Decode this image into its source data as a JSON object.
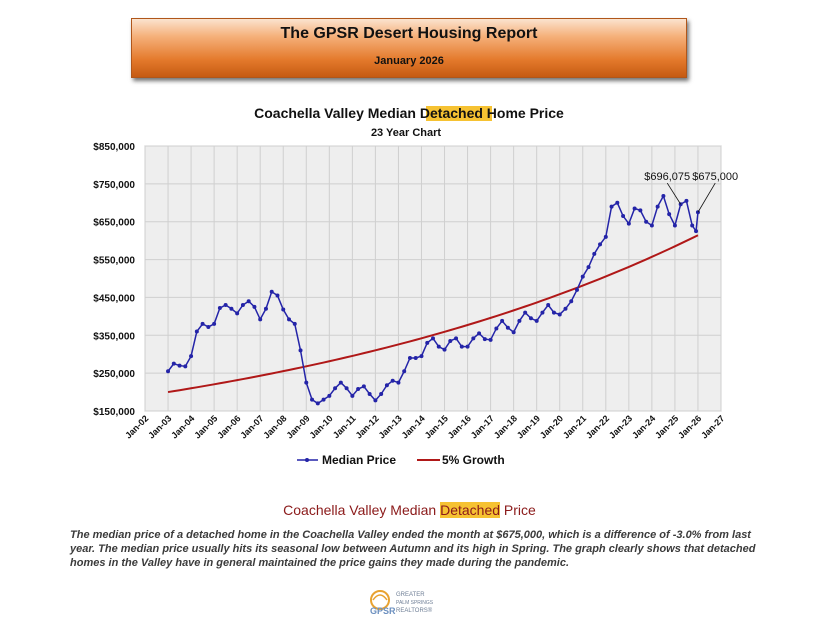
{
  "header": {
    "title": "The GPSR Desert Housing Report",
    "date": "January 2026"
  },
  "chart_data": {
    "type": "line",
    "title_parts": [
      "Coachella Valley Median ",
      "Detached",
      " Home Price"
    ],
    "subtitle": "23 Year Chart",
    "highlight_color": "#f6c232",
    "y_ticks": [
      "$850,000",
      "$750,000",
      "$650,000",
      "$550,000",
      "$450,000",
      "$350,000",
      "$250,000",
      "$150,000"
    ],
    "ylim": [
      150000,
      850000
    ],
    "x_ticks": [
      "Jan-02",
      "Jan-03",
      "Jan-04",
      "Jan-05",
      "Jan-06",
      "Jan-07",
      "Jan-08",
      "Jan-09",
      "Jan-10",
      "Jan-11",
      "Jan-12",
      "Jan-13",
      "Jan-14",
      "Jan-15",
      "Jan-16",
      "Jan-17",
      "Jan-18",
      "Jan-19",
      "Jan-20",
      "Jan-21",
      "Jan-22",
      "Jan-23",
      "Jan-24",
      "Jan-25",
      "Jan-26",
      "Jan-27"
    ],
    "xlim": [
      "2002-01",
      "2027-01"
    ],
    "grid": true,
    "legend_position": "bottom",
    "series": [
      {
        "name": "Median Price",
        "color": "#2424a8",
        "marker": "circle",
        "points": [
          [
            "2003-01",
            255000
          ],
          [
            "2003-04",
            275000
          ],
          [
            "2003-07",
            270000
          ],
          [
            "2003-10",
            268000
          ],
          [
            "2004-01",
            295000
          ],
          [
            "2004-04",
            360000
          ],
          [
            "2004-07",
            380000
          ],
          [
            "2004-10",
            372000
          ],
          [
            "2005-01",
            380000
          ],
          [
            "2005-04",
            422000
          ],
          [
            "2005-07",
            430000
          ],
          [
            "2005-10",
            420000
          ],
          [
            "2006-01",
            408000
          ],
          [
            "2006-04",
            430000
          ],
          [
            "2006-07",
            440000
          ],
          [
            "2006-10",
            425000
          ],
          [
            "2007-01",
            392000
          ],
          [
            "2007-04",
            420000
          ],
          [
            "2007-07",
            465000
          ],
          [
            "2007-10",
            455000
          ],
          [
            "2008-01",
            418000
          ],
          [
            "2008-04",
            392000
          ],
          [
            "2008-07",
            380000
          ],
          [
            "2008-10",
            310000
          ],
          [
            "2009-01",
            225000
          ],
          [
            "2009-04",
            180000
          ],
          [
            "2009-07",
            170000
          ],
          [
            "2009-10",
            180000
          ],
          [
            "2010-01",
            190000
          ],
          [
            "2010-04",
            210000
          ],
          [
            "2010-07",
            225000
          ],
          [
            "2010-10",
            210000
          ],
          [
            "2011-01",
            190000
          ],
          [
            "2011-04",
            208000
          ],
          [
            "2011-07",
            215000
          ],
          [
            "2011-10",
            195000
          ],
          [
            "2012-01",
            178000
          ],
          [
            "2012-04",
            195000
          ],
          [
            "2012-07",
            218000
          ],
          [
            "2012-10",
            230000
          ],
          [
            "2013-01",
            225000
          ],
          [
            "2013-04",
            255000
          ],
          [
            "2013-07",
            290000
          ],
          [
            "2013-10",
            290000
          ],
          [
            "2014-01",
            295000
          ],
          [
            "2014-04",
            330000
          ],
          [
            "2014-07",
            342000
          ],
          [
            "2014-10",
            320000
          ],
          [
            "2015-01",
            312000
          ],
          [
            "2015-04",
            335000
          ],
          [
            "2015-07",
            342000
          ],
          [
            "2015-10",
            320000
          ],
          [
            "2016-01",
            320000
          ],
          [
            "2016-04",
            342000
          ],
          [
            "2016-07",
            355000
          ],
          [
            "2016-10",
            340000
          ],
          [
            "2017-01",
            338000
          ],
          [
            "2017-04",
            368000
          ],
          [
            "2017-07",
            388000
          ],
          [
            "2017-10",
            370000
          ],
          [
            "2018-01",
            358000
          ],
          [
            "2018-04",
            388000
          ],
          [
            "2018-07",
            410000
          ],
          [
            "2018-10",
            395000
          ],
          [
            "2019-01",
            388000
          ],
          [
            "2019-04",
            410000
          ],
          [
            "2019-07",
            430000
          ],
          [
            "2019-10",
            410000
          ],
          [
            "2020-01",
            405000
          ],
          [
            "2020-04",
            420000
          ],
          [
            "2020-07",
            440000
          ],
          [
            "2020-10",
            470000
          ],
          [
            "2021-01",
            505000
          ],
          [
            "2021-04",
            530000
          ],
          [
            "2021-07",
            565000
          ],
          [
            "2021-10",
            590000
          ],
          [
            "2022-01",
            610000
          ],
          [
            "2022-04",
            690000
          ],
          [
            "2022-07",
            700000
          ],
          [
            "2022-10",
            665000
          ],
          [
            "2023-01",
            645000
          ],
          [
            "2023-04",
            685000
          ],
          [
            "2023-07",
            680000
          ],
          [
            "2023-10",
            650000
          ],
          [
            "2024-01",
            640000
          ],
          [
            "2024-04",
            690000
          ],
          [
            "2024-07",
            718000
          ],
          [
            "2024-10",
            670000
          ],
          [
            "2025-01",
            640000
          ],
          [
            "2025-04",
            696075
          ],
          [
            "2025-07",
            705000
          ],
          [
            "2025-10",
            640000
          ],
          [
            "2025-12",
            625000
          ],
          [
            "2026-01",
            675000
          ]
        ]
      },
      {
        "name": "5% Growth",
        "color": "#b01818",
        "start": [
          "2003-01",
          200000
        ],
        "annual_rate": 0.05,
        "end": "2026-01"
      }
    ],
    "annotations": [
      {
        "text": "$696,075",
        "at": [
          "2025-04",
          696075
        ],
        "label_at": [
          "2024-09",
          760000
        ]
      },
      {
        "text": "$675,000",
        "at": [
          "2026-01",
          675000
        ],
        "label_at": [
          "2026-10",
          760000
        ]
      }
    ]
  },
  "caption": {
    "before": "Coachella Valley Median ",
    "highlight": "Detached",
    "after": " Price"
  },
  "body_text": "The median price of a detached home in the Coachella Valley ended the month at $675,000, which is a difference of -3.0% from last year. The median price usually hits its seasonal low between Autumn and its high in Spring. The graph clearly shows that detached homes in the Valley have in general maintained the price gains they made during the pandemic.",
  "logo": {
    "mark": "GPSR",
    "line1": "GREATER",
    "line2": "PALM SPRINGS",
    "line3": "REALTORS®"
  }
}
